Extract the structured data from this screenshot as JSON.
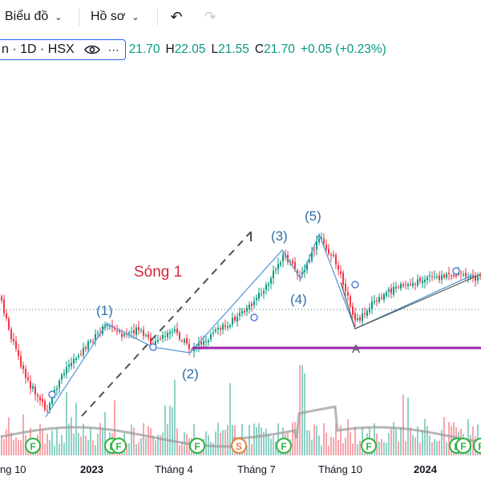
{
  "toolbar": {
    "chart_menu": "Biểu đồ",
    "profile_menu": "Hồ sơ",
    "undo_icon": "undo-icon",
    "redo_icon": "redo-icon"
  },
  "legend": {
    "symbol": "n · 1D · HSX",
    "open": "21.70",
    "high": "22.05",
    "low": "21.55",
    "close": "21.70",
    "change": "+0.05 (+0.23%)",
    "open_label": "",
    "high_label": "H",
    "low_label": "L",
    "close_label": "C"
  },
  "annotations": {
    "wave_title": "Sóng 1",
    "wave_1": "(1)",
    "wave_2": "(2)",
    "wave_3": "(3)",
    "wave_4": "(4)",
    "wave_5": "(5)",
    "point_a": "A"
  },
  "x_axis": [
    "ng 10",
    "2023",
    "Tháng 4",
    "Tháng 7",
    "Tháng 10",
    "2024"
  ],
  "event_markers": [
    "F",
    "F",
    "F",
    "F",
    "S",
    "F",
    "F",
    "F",
    "F",
    "F"
  ],
  "colors": {
    "up": "#089981",
    "down": "#f23645",
    "wave_line": "#5b9bd5",
    "wave_label": "#2f6fa8",
    "support": "#9c27b0",
    "title_red": "#d7263d",
    "marker_f": "#2fb344",
    "marker_s": "#ef7d3a"
  }
}
